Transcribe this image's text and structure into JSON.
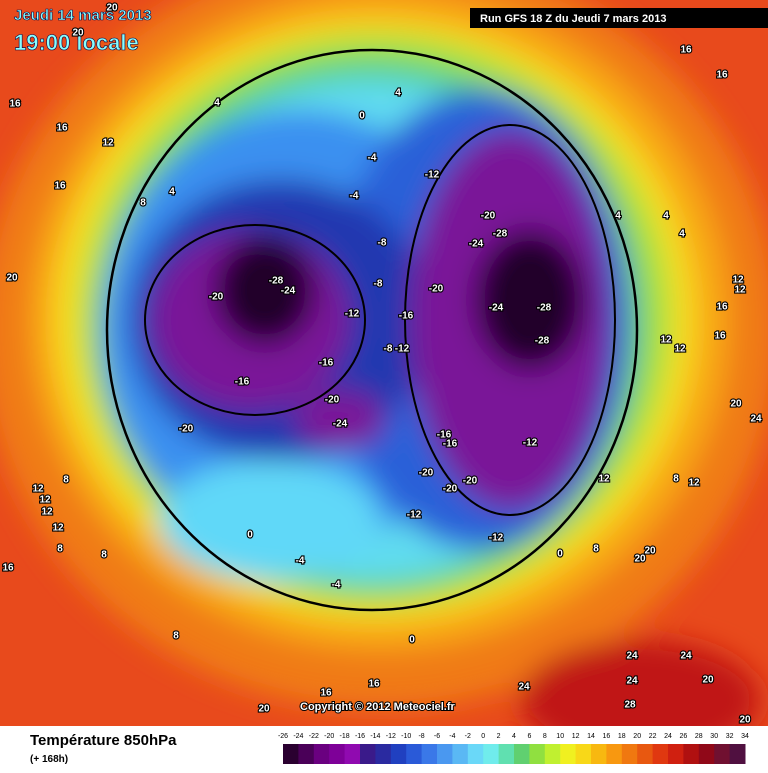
{
  "header": {
    "date": "Jeudi 14 mars 2013",
    "time": "19:00 locale",
    "run": "Run GFS 18 Z du Jeudi 7 mars 2013"
  },
  "copyright": "Copyright © 2012 Meteociel.fr",
  "footer": {
    "title": "Température 850hPa",
    "lead": "(+ 168h)"
  },
  "contour_labels": [
    "20",
    "20",
    "16",
    "16",
    "16",
    "16",
    "12",
    "4",
    "4",
    "0",
    "-4",
    "-12",
    "-4",
    "4",
    "16",
    "8",
    "-20",
    "-28",
    "-24",
    "-8",
    "-28",
    "-24",
    "-20",
    "-8",
    "-20",
    "-24",
    "-28",
    "-28",
    "-12",
    "-16",
    "-8",
    "-12",
    "-16",
    "-16",
    "-20",
    "-24",
    "-20",
    "-16",
    "-16",
    "-12",
    "-20",
    "-20",
    "-20",
    "-12",
    "-12",
    "0",
    "-4",
    "-4",
    "0",
    "0",
    "4",
    "4",
    "4",
    "12",
    "12",
    "16",
    "12",
    "16",
    "20",
    "12",
    "24",
    "12",
    "8",
    "12",
    "20",
    "20",
    "8",
    "24",
    "24",
    "24",
    "20",
    "28",
    "24",
    "20",
    "16",
    "16",
    "8",
    "8",
    "8",
    "16",
    "12",
    "12",
    "12",
    "12",
    "8",
    "20",
    "20"
  ],
  "scale": {
    "labels": [
      -26,
      -24,
      -22,
      -20,
      -18,
      -16,
      -14,
      -12,
      -10,
      -8,
      -6,
      -4,
      -2,
      0,
      2,
      4,
      6,
      8,
      10,
      12,
      14,
      16,
      18,
      20,
      22,
      24,
      26,
      28,
      30,
      32,
      34
    ],
    "colors": [
      "#2a0030",
      "#4a0058",
      "#6a0080",
      "#7e0098",
      "#900ab0",
      "#3a1a8a",
      "#2a2aa0",
      "#2040c0",
      "#2a5ad8",
      "#3a78e8",
      "#4a98f0",
      "#5ab8f4",
      "#6ad8f8",
      "#70ecec",
      "#60e0b0",
      "#60d070",
      "#90e040",
      "#c0f030",
      "#f0f020",
      "#f8d818",
      "#f8b810",
      "#f89810",
      "#f07810",
      "#e85810",
      "#e03810",
      "#d02010",
      "#b01010",
      "#900818",
      "#701030",
      "#501040"
    ]
  }
}
